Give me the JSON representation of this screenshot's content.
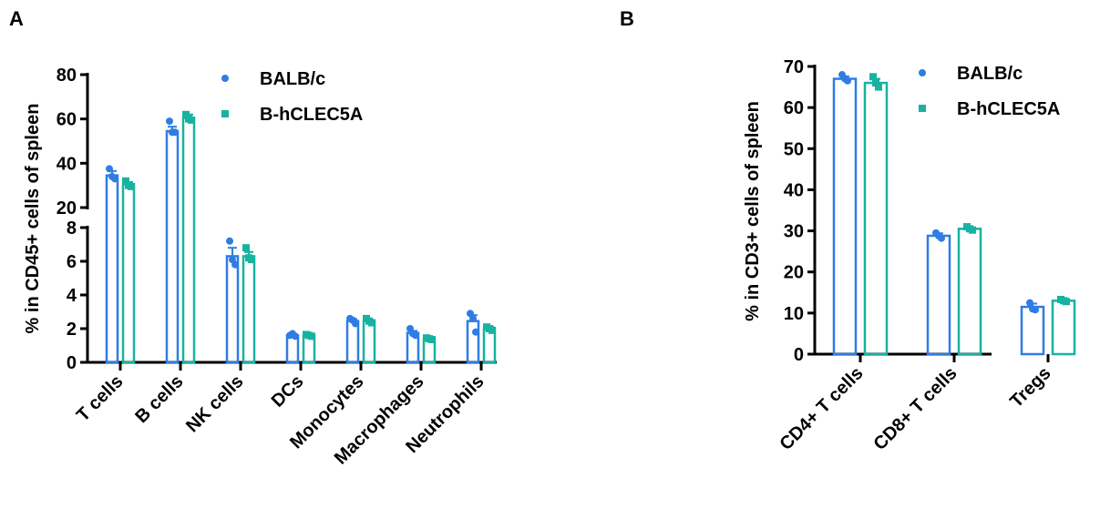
{
  "colors": {
    "balb": "#2f7de3",
    "hclec": "#17b3a0",
    "axis": "#000000"
  },
  "legend": [
    {
      "label": "BALB/c",
      "marker": "circle",
      "color": "#2f7de3"
    },
    {
      "label": "B-hCLEC5A",
      "marker": "square",
      "color": "#17b3a0"
    }
  ],
  "chart_data": [
    {
      "panel": "A",
      "type": "bar",
      "ylabel": "% in CD45+ cells of spleen",
      "broken_axis": {
        "lower": [
          0,
          8
        ],
        "upper": [
          20,
          80
        ]
      },
      "yticks_lower": [
        0,
        2,
        4,
        6,
        8
      ],
      "yticks_upper": [
        20,
        40,
        60,
        80
      ],
      "categories": [
        "T cells",
        "B cells",
        "NK cells",
        "DCs",
        "Monocytes",
        "Macrophages",
        "Neutrophils"
      ],
      "series": [
        {
          "name": "BALB/c",
          "marker": "circle",
          "values": [
            34.5,
            54.5,
            6.3,
            1.6,
            2.45,
            1.75,
            2.45
          ],
          "sem": [
            2.0,
            2.0,
            0.5,
            0.05,
            0.12,
            0.12,
            0.35
          ],
          "points": [
            [
              37.5,
              34,
              33
            ],
            [
              59,
              54,
              54
            ],
            [
              7.2,
              6.1,
              5.8
            ],
            [
              1.6,
              1.7,
              1.55
            ],
            [
              2.6,
              2.5,
              2.3
            ],
            [
              2.0,
              1.7,
              1.6
            ],
            [
              2.9,
              2.6,
              1.8
            ]
          ]
        },
        {
          "name": "B-hCLEC5A",
          "marker": "square",
          "values": [
            30.5,
            60.5,
            6.3,
            1.6,
            2.45,
            1.4,
            2.0
          ],
          "sem": [
            1.0,
            1.5,
            0.25,
            0.05,
            0.08,
            0.05,
            0.1
          ],
          "points": [
            [
              32,
              30,
              29.5
            ],
            [
              62,
              60,
              59.5
            ],
            [
              6.8,
              6.2,
              6.1
            ],
            [
              1.65,
              1.6,
              1.55
            ],
            [
              2.6,
              2.45,
              2.35
            ],
            [
              1.45,
              1.4,
              1.35
            ],
            [
              2.1,
              2.0,
              1.9
            ]
          ]
        }
      ]
    },
    {
      "panel": "B",
      "type": "bar",
      "ylabel": "% in CD3+ cells of spleen",
      "ylim": [
        0,
        70
      ],
      "yticks": [
        0,
        10,
        20,
        30,
        40,
        50,
        60,
        70
      ],
      "categories": [
        "CD4+ T cells",
        "CD8+ T cells",
        "Tregs"
      ],
      "series": [
        {
          "name": "BALB/c",
          "marker": "circle",
          "values": [
            67.0,
            28.8,
            11.5
          ],
          "sem": [
            0.6,
            0.6,
            0.8
          ],
          "points": [
            [
              68,
              67,
              66.5
            ],
            [
              29.5,
              28.8,
              28.2
            ],
            [
              12.5,
              11.0,
              10.8
            ]
          ]
        },
        {
          "name": "B-hCLEC5A",
          "marker": "square",
          "values": [
            66.0,
            30.5,
            13.0
          ],
          "sem": [
            1.0,
            0.4,
            0.3
          ],
          "points": [
            [
              67.5,
              66,
              65
            ],
            [
              31,
              30.5,
              30.2
            ],
            [
              13.3,
              13.0,
              12.8
            ]
          ]
        }
      ]
    }
  ]
}
